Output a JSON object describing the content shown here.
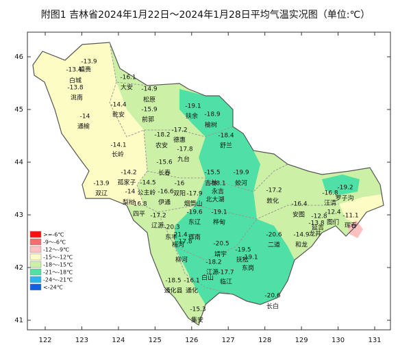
{
  "title": "附图1 吉林省2024年1月22日～2024年1月28日平均气温实况图（单位:℃）",
  "lon_ticks": [
    122,
    123,
    124,
    125,
    126,
    127,
    128,
    129,
    130,
    131
  ],
  "lat_ticks": [
    41,
    42,
    43,
    44,
    45,
    46
  ],
  "legend": [
    {
      "label": ">=-6℃",
      "color": "#ff1010"
    },
    {
      "label": "-9～-6℃",
      "color": "#f07070"
    },
    {
      "label": "-12～-9℃",
      "color": "#ffc0c0"
    },
    {
      "label": "-15～-12℃",
      "color": "#fdfcc4"
    },
    {
      "label": "-18～-15℃",
      "color": "#ccf0a6"
    },
    {
      "label": "-21～-18℃",
      "color": "#4ee0a4"
    },
    {
      "label": "-24～-21℃",
      "color": "#2ab4f0"
    },
    {
      "label": "<-24℃",
      "color": "#1060e0"
    }
  ],
  "temperature_labels": [
    -13.9,
    -13.4,
    -13.8,
    -16.1,
    -14.9,
    -15.9,
    -14.4,
    -14,
    -19.1,
    -18.9,
    -18.2,
    -17.2,
    -18.4,
    -14.1,
    -17.8,
    -15.6,
    -19.9,
    -15.5,
    -18.1,
    -14.2,
    -14.5,
    -16,
    -13.9,
    -14,
    -16.6,
    -17.9,
    -16.8,
    -17.2,
    -16.4,
    -16.8,
    -19.2,
    -12.4,
    -12.8,
    -11.1,
    -13.8,
    -14.9,
    -17.2,
    -19.6,
    -19.1,
    -20.3,
    -21.4,
    -17.8,
    -20.6,
    -20.5,
    -19.5,
    -19.1,
    -18.2,
    -17.7,
    -18.5,
    -16.1,
    -20.6,
    -15.3
  ],
  "place_names": [
    "镇赉",
    "白城",
    "洮南",
    "大安",
    "松原",
    "前郭",
    "乾安",
    "通榆",
    "扶余",
    "榆树",
    "农安",
    "德惠",
    "舒兰",
    "长岭",
    "九台",
    "长春",
    "蛟河",
    "吉林",
    "永吉",
    "北大湖",
    "孤家子",
    "公主岭",
    "双辽",
    "梨树",
    "伊通",
    "双阳",
    "烟筒山",
    "四平",
    "敦化",
    "安图",
    "汪清",
    "罗子沟",
    "图们",
    "珲春",
    "延吉",
    "龙井",
    "和龙",
    "辽源",
    "东辽",
    "桦甸",
    "东丰",
    "梅河",
    "辉南",
    "二道",
    "靖宇",
    "抚松",
    "东岗",
    "柳河",
    "江源",
    "白山",
    "临江",
    "通化县",
    "通化",
    "长白",
    "集安"
  ]
}
